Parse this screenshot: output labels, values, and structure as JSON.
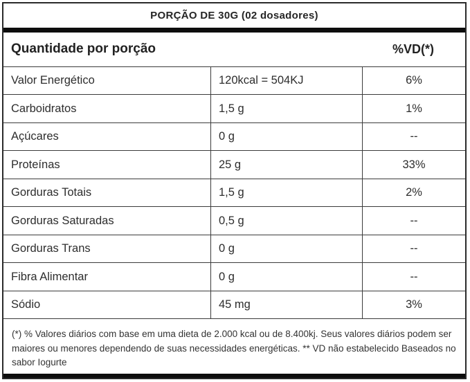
{
  "header": {
    "title": "PORÇÃO DE 30G (02 dosadores)"
  },
  "table": {
    "quantity_header": "Quantidade por porção",
    "vd_header": "%VD(*)",
    "rows": [
      {
        "nutrient": "Valor Energético",
        "amount": "120kcal = 504KJ",
        "vd": "6%"
      },
      {
        "nutrient": "Carboidratos",
        "amount": "1,5 g",
        "vd": "1%"
      },
      {
        "nutrient": "Açúcares",
        "amount": "0 g",
        "vd": "--"
      },
      {
        "nutrient": "Proteínas",
        "amount": "25 g",
        "vd": "33%"
      },
      {
        "nutrient": "Gorduras Totais",
        "amount": "1,5 g",
        "vd": "2%"
      },
      {
        "nutrient": "Gorduras Saturadas",
        "amount": "0,5 g",
        "vd": "--"
      },
      {
        "nutrient": "Gorduras Trans",
        "amount": "0 g",
        "vd": "--"
      },
      {
        "nutrient": "Fibra Alimentar",
        "amount": "0 g",
        "vd": "--"
      },
      {
        "nutrient": "Sódio",
        "amount": "45 mg",
        "vd": "3%"
      }
    ]
  },
  "footnote": {
    "text": "(*) % Valores diários com base em uma dieta de 2.000 kcal ou de 8.400kj. Seus valores diários podem ser maiores ou menores dependendo de suas necessidades energéticas. ** VD não estabelecido Baseados no sabor Iogurte"
  },
  "colors": {
    "text": "#2d2d2d",
    "lines": "#3a3a3a",
    "bar": "#0d0d0d",
    "background": "#ffffff"
  }
}
